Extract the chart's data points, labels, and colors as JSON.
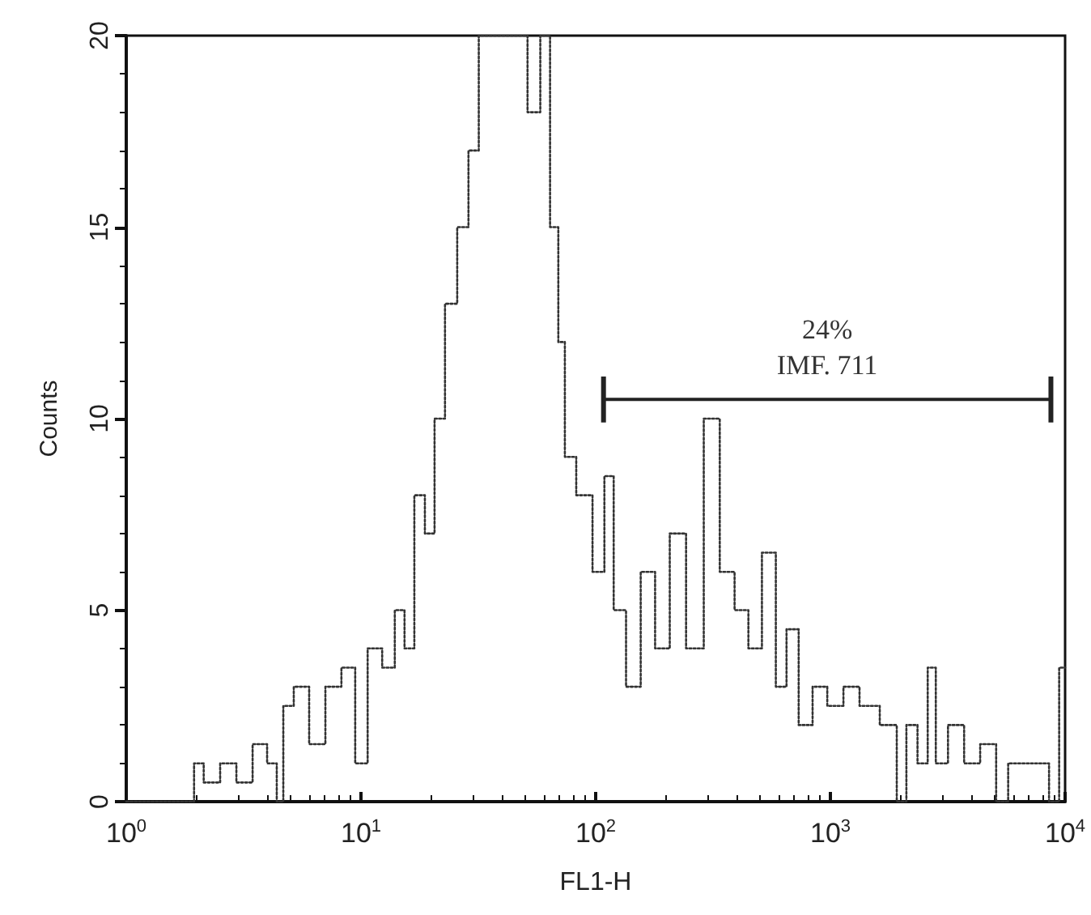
{
  "chart_data": {
    "type": "step",
    "xlabel": "FL1-H",
    "ylabel": "Counts",
    "log": "x",
    "xlim": [
      1,
      10000
    ],
    "xticks": [
      {
        "value": 1,
        "label": "10$^{0}$"
      },
      {
        "value": 10,
        "label": "10$^{1}$"
      },
      {
        "value": 100,
        "label": "10$^{2}$"
      },
      {
        "value": 1000,
        "label": "10$^{3}$"
      },
      {
        "value": 10000,
        "label": "10$^{4}$"
      }
    ],
    "ylim": [
      0,
      20
    ],
    "yticks": [
      0,
      5,
      10,
      15,
      20
    ],
    "grid": false,
    "marker": "none",
    "line_style": "dotted",
    "annotations": [
      {
        "text": "24%\nIMF. 711",
        "x": 969,
        "y": 10.5
      }
    ],
    "series": [
      {
        "type": "line",
        "line_style": "solid",
        "color": "#222222",
        "x": [
          108,
          8700
        ],
        "values": [
          10.5,
          10.5
        ],
        "errors": [
          0.6,
          0.6
        ]
      },
      {
        "color": "#333333",
        "x": [
          1,
          1.92,
          1.97,
          2.32,
          2.72,
          3.19,
          3.74,
          4.24,
          4.52,
          4.82,
          5.55,
          6.52,
          7.63,
          8.93,
          10.0,
          11.4,
          13.3,
          14.6,
          16.1,
          17.7,
          19.8,
          21.4,
          24.3,
          27.2,
          30.3,
          33.3,
          47.4,
          55.4,
          60.9,
          67.1,
          71.6,
          76.3,
          89.5,
          105,
          113,
          126,
          144,
          168,
          191,
          224,
          263,
          317,
          360,
          424,
          472,
          553,
          620,
          682,
          787,
          896,
          1050,
          1230,
          1440,
          1830,
          2010,
          2210,
          2500,
          2700,
          2930,
          3430,
          4020,
          4700,
          5500,
          5950,
          8200,
          8900,
          10000
        ],
        "values": [
          0,
          0,
          1,
          0.5,
          1,
          0.5,
          1.5,
          1,
          0,
          2.5,
          3,
          1.5,
          3,
          3.5,
          1,
          4,
          3.5,
          5,
          4,
          8,
          7,
          10,
          13,
          15,
          17,
          20,
          20,
          18,
          20,
          15,
          12,
          9,
          8,
          6,
          8.5,
          5,
          3,
          6,
          4,
          7,
          4,
          10,
          6,
          5,
          4,
          6.5,
          3,
          4.5,
          2,
          3,
          2.5,
          3,
          2.5,
          2,
          0,
          2,
          1,
          3.5,
          1,
          2,
          1,
          1.5,
          0,
          1,
          1,
          0,
          3.5
        ]
      }
    ]
  }
}
